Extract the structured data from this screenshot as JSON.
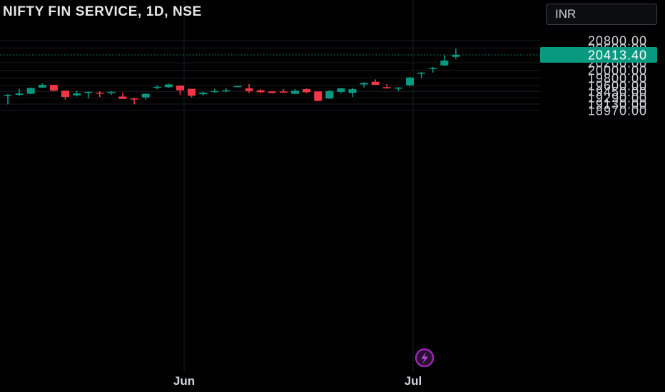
{
  "header": {
    "title": "NIFTY FIN SERVICE, 1D, NSE",
    "currency": "INR"
  },
  "icons": {
    "replay": "lightning-bolt-icon"
  },
  "colors": {
    "background": "#000000",
    "up": "#089981",
    "down": "#f23645",
    "grid": "#1a1c22",
    "text": "#d1d4dc",
    "replay": "#9c27b0"
  },
  "chart_data": {
    "type": "candlestick",
    "title": "NIFTY FIN SERVICE, 1D, NSE",
    "ytick_labels": [
      "20800.00",
      "20600.00",
      "20200.00",
      "20000.00",
      "19800.00",
      "19600.00",
      "19450.00",
      "19290.00",
      "19130.00",
      "18970.00"
    ],
    "xtick_labels": [
      "Jun",
      "Jul"
    ],
    "last_price_label": "20413.40",
    "last_price": 20413.4,
    "scale": "log",
    "ylim": [
      18900,
      20960
    ],
    "grid": true,
    "candles": [
      {
        "o": 19340,
        "h": 19390,
        "l": 19120,
        "c": 19360
      },
      {
        "o": 19360,
        "h": 19520,
        "l": 19340,
        "c": 19400
      },
      {
        "o": 19390,
        "h": 19550,
        "l": 19380,
        "c": 19540
      },
      {
        "o": 19550,
        "h": 19660,
        "l": 19540,
        "c": 19620
      },
      {
        "o": 19620,
        "h": 19620,
        "l": 19450,
        "c": 19470
      },
      {
        "o": 19470,
        "h": 19470,
        "l": 19240,
        "c": 19310
      },
      {
        "o": 19350,
        "h": 19470,
        "l": 19320,
        "c": 19400
      },
      {
        "o": 19430,
        "h": 19450,
        "l": 19270,
        "c": 19440
      },
      {
        "o": 19420,
        "h": 19460,
        "l": 19310,
        "c": 19410
      },
      {
        "o": 19410,
        "h": 19460,
        "l": 19360,
        "c": 19440
      },
      {
        "o": 19320,
        "h": 19420,
        "l": 19260,
        "c": 19260
      },
      {
        "o": 19270,
        "h": 19290,
        "l": 19120,
        "c": 19250
      },
      {
        "o": 19300,
        "h": 19400,
        "l": 19240,
        "c": 19390
      },
      {
        "o": 19560,
        "h": 19610,
        "l": 19510,
        "c": 19570
      },
      {
        "o": 19560,
        "h": 19650,
        "l": 19540,
        "c": 19630
      },
      {
        "o": 19600,
        "h": 19600,
        "l": 19360,
        "c": 19480
      },
      {
        "o": 19520,
        "h": 19520,
        "l": 19300,
        "c": 19340
      },
      {
        "o": 19380,
        "h": 19440,
        "l": 19350,
        "c": 19420
      },
      {
        "o": 19450,
        "h": 19520,
        "l": 19420,
        "c": 19460
      },
      {
        "o": 19470,
        "h": 19530,
        "l": 19430,
        "c": 19480
      },
      {
        "o": 19590,
        "h": 19600,
        "l": 19560,
        "c": 19590
      },
      {
        "o": 19530,
        "h": 19640,
        "l": 19410,
        "c": 19460
      },
      {
        "o": 19480,
        "h": 19510,
        "l": 19410,
        "c": 19430
      },
      {
        "o": 19450,
        "h": 19460,
        "l": 19400,
        "c": 19410
      },
      {
        "o": 19450,
        "h": 19510,
        "l": 19410,
        "c": 19420
      },
      {
        "o": 19390,
        "h": 19510,
        "l": 19380,
        "c": 19470
      },
      {
        "o": 19510,
        "h": 19530,
        "l": 19410,
        "c": 19430
      },
      {
        "o": 19450,
        "h": 19450,
        "l": 19200,
        "c": 19210
      },
      {
        "o": 19270,
        "h": 19490,
        "l": 19260,
        "c": 19460
      },
      {
        "o": 19440,
        "h": 19540,
        "l": 19400,
        "c": 19530
      },
      {
        "o": 19410,
        "h": 19540,
        "l": 19310,
        "c": 19510
      },
      {
        "o": 19630,
        "h": 19690,
        "l": 19550,
        "c": 19670
      },
      {
        "o": 19700,
        "h": 19760,
        "l": 19620,
        "c": 19620
      },
      {
        "o": 19560,
        "h": 19640,
        "l": 19520,
        "c": 19530
      },
      {
        "o": 19540,
        "h": 19560,
        "l": 19460,
        "c": 19550
      },
      {
        "o": 19610,
        "h": 19830,
        "l": 19580,
        "c": 19810
      },
      {
        "o": 19910,
        "h": 19960,
        "l": 19790,
        "c": 19940
      },
      {
        "o": 20040,
        "h": 20090,
        "l": 19940,
        "c": 20060
      },
      {
        "o": 20130,
        "h": 20400,
        "l": 20110,
        "c": 20260
      },
      {
        "o": 20360,
        "h": 20580,
        "l": 20300,
        "c": 20413.4
      }
    ]
  }
}
